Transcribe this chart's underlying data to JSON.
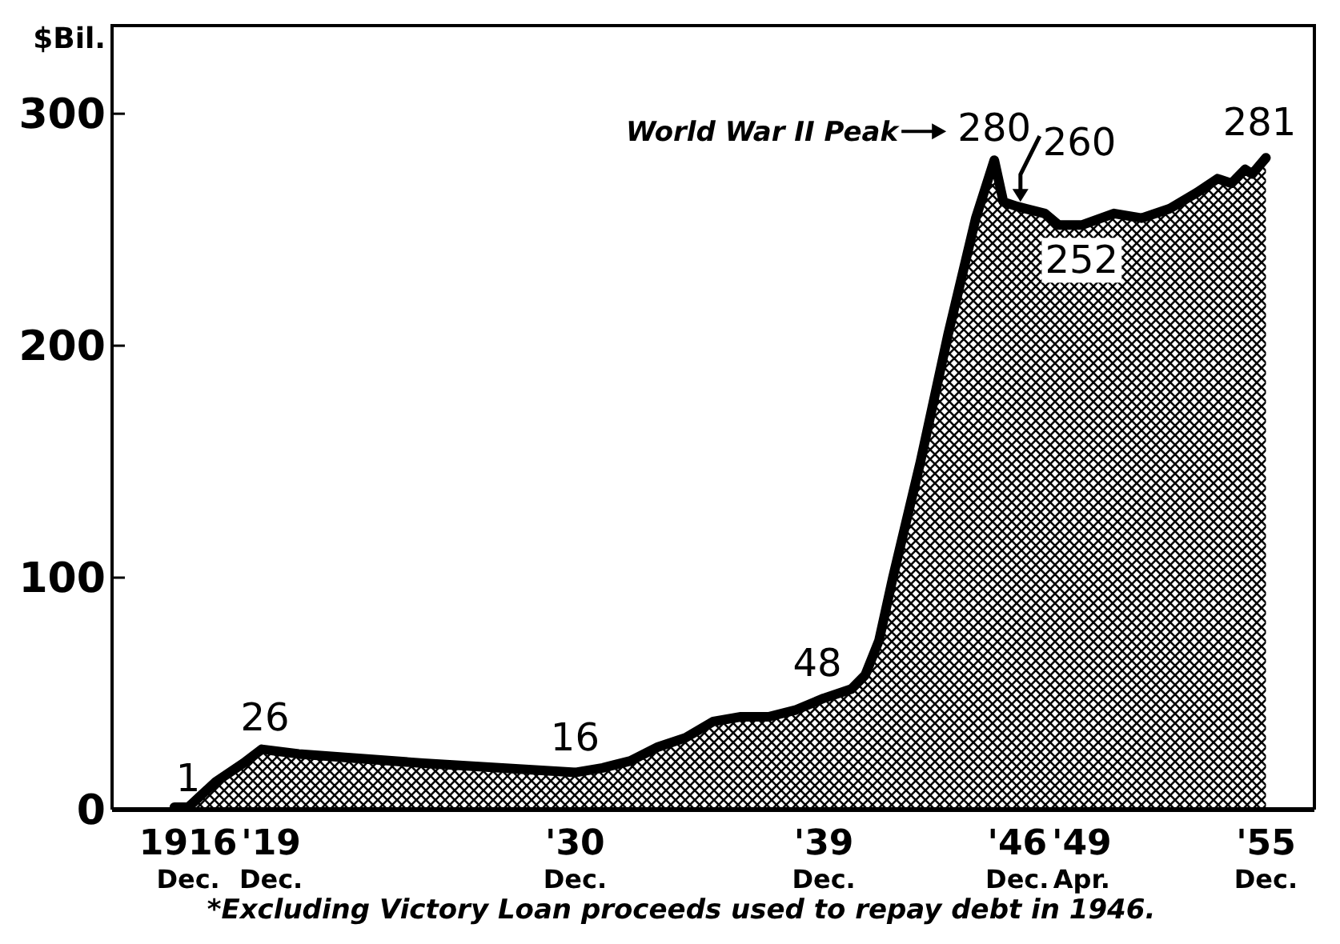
{
  "chart_data": {
    "type": "area",
    "ylabel": "$Bil.",
    "x": [
      "1916-06",
      "1916-12",
      "1917-12",
      "1918-12",
      "1919-08",
      "1920-12",
      "1925-06",
      "1930-12",
      "1931-12",
      "1932-12",
      "1933-12",
      "1934-12",
      "1935-12",
      "1936-12",
      "1937-12",
      "1938-12",
      "1939-12",
      "1940-12",
      "1941-06",
      "1941-12",
      "1942-06",
      "1943-06",
      "1944-06",
      "1945-06",
      "1946-02",
      "1946-06",
      "1946-12",
      "1947-12",
      "1948-06",
      "1949-04",
      "1950-06",
      "1951-06",
      "1952-06",
      "1953-06",
      "1954-03",
      "1954-09",
      "1955-03",
      "1955-06",
      "1955-12"
    ],
    "series": [
      {
        "color": "#000000",
        "values": [
          1,
          1,
          12,
          20,
          26,
          24,
          20,
          16,
          18,
          21,
          27,
          31,
          38,
          40,
          40,
          43,
          48,
          52,
          58,
          73,
          100,
          150,
          205,
          255,
          280,
          262,
          260,
          257,
          252,
          252,
          257,
          255,
          259,
          266,
          272,
          270,
          276,
          274,
          281
        ]
      }
    ],
    "xlim": [
      "1914-03",
      "1957-09"
    ],
    "xticks": [
      {
        "value": "1916-12",
        "label": "1916\nDec."
      },
      {
        "value": "1919-12",
        "label": "'19\nDec."
      },
      {
        "value": "1930-12",
        "label": "'30\nDec."
      },
      {
        "value": "1939-12",
        "label": "'39\nDec."
      },
      {
        "value": "1946-12",
        "label": "'46\nDec."
      },
      {
        "value": "1949-04",
        "label": "'49\nApr."
      },
      {
        "value": "1955-12",
        "label": "'55\nDec."
      }
    ],
    "ylim": [
      0,
      338
    ],
    "yticks": [
      0,
      100,
      200,
      300
    ],
    "grid": false,
    "annotations": [
      {
        "text": "1",
        "x": "1916-12",
        "y": 1
      },
      {
        "text": "26",
        "x": "1919-08",
        "y": 26
      },
      {
        "text": "16",
        "x": "1930-12",
        "y": 16
      },
      {
        "text": "48",
        "x": "1939-12",
        "y": 48
      },
      {
        "text": "280",
        "x": "1946-02",
        "y": 280
      },
      "World War II Peak",
      {
        "text": "260",
        "x": "1946-12",
        "y": 260
      },
      {
        "text": "252",
        "x": "1949-04",
        "y": 252
      },
      {
        "text": "281",
        "x": "1955-12",
        "y": 281
      },
      "*Excluding Victory Loan proceeds used to repay debt in 1946."
    ]
  }
}
